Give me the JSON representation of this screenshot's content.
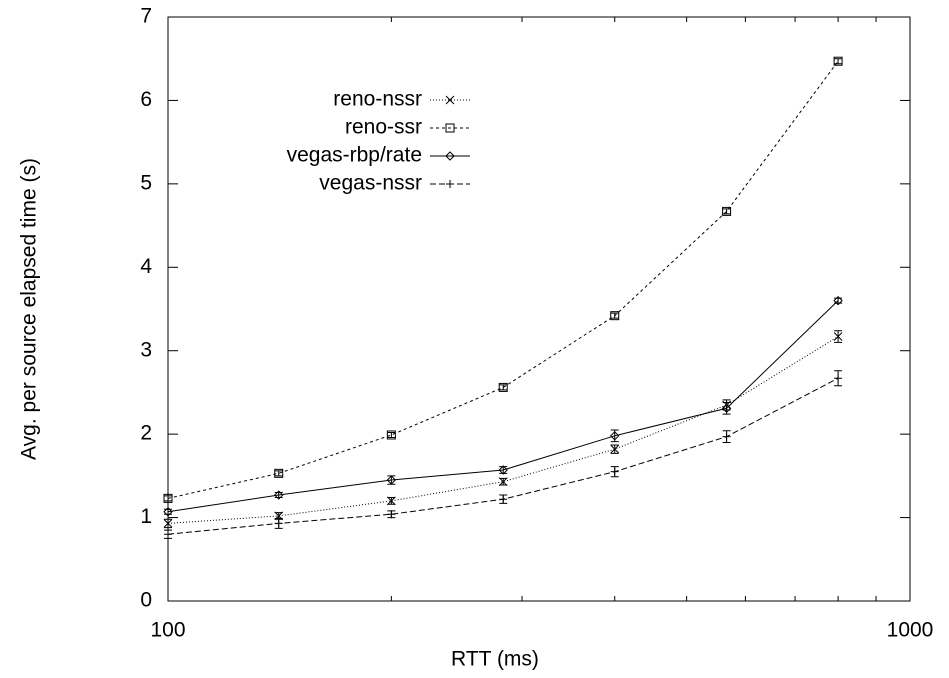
{
  "chart_data": {
    "type": "line",
    "xlabel": "RTT (ms)",
    "ylabel": "Avg. per source elapsed time (s)",
    "x": [
      100,
      141,
      200,
      283,
      400,
      566,
      800
    ],
    "xscale": "log",
    "xlim": [
      100,
      1000
    ],
    "xticks": [
      100,
      1000
    ],
    "xminorticks": [
      200,
      300,
      400,
      500,
      600,
      700,
      800,
      900
    ],
    "ylim": [
      0,
      7
    ],
    "yticks": [
      0,
      1,
      2,
      3,
      4,
      5,
      6,
      7
    ],
    "legend": "upper-left",
    "grid": false,
    "series": [
      {
        "name": "reno-nssr",
        "color": "#000000",
        "marker": "x",
        "dash": "1,2",
        "values": [
          0.93,
          1.02,
          1.2,
          1.43,
          1.82,
          2.35,
          3.17
        ],
        "errors": [
          0.05,
          0.04,
          0.04,
          0.04,
          0.05,
          0.06,
          0.07
        ]
      },
      {
        "name": "reno-ssr",
        "color": "#000000",
        "marker": "square",
        "dash": "3,3",
        "values": [
          1.23,
          1.53,
          1.99,
          2.56,
          3.42,
          4.67,
          6.47
        ],
        "errors": [
          0.03,
          0.03,
          0.03,
          0.03,
          0.03,
          0.03,
          0.03
        ]
      },
      {
        "name": "vegas-rbp/rate",
        "color": "#000000",
        "marker": "diamond",
        "dash": "",
        "values": [
          1.07,
          1.27,
          1.45,
          1.57,
          1.98,
          2.31,
          3.6
        ],
        "errors": [
          0.03,
          0.03,
          0.05,
          0.04,
          0.07,
          0.07,
          0.03
        ]
      },
      {
        "name": "vegas-nssr",
        "color": "#000000",
        "marker": "plus",
        "dash": "6,3",
        "values": [
          0.8,
          0.93,
          1.04,
          1.22,
          1.55,
          1.97,
          2.67
        ],
        "errors": [
          0.05,
          0.06,
          0.04,
          0.05,
          0.06,
          0.07,
          0.09
        ]
      }
    ]
  }
}
